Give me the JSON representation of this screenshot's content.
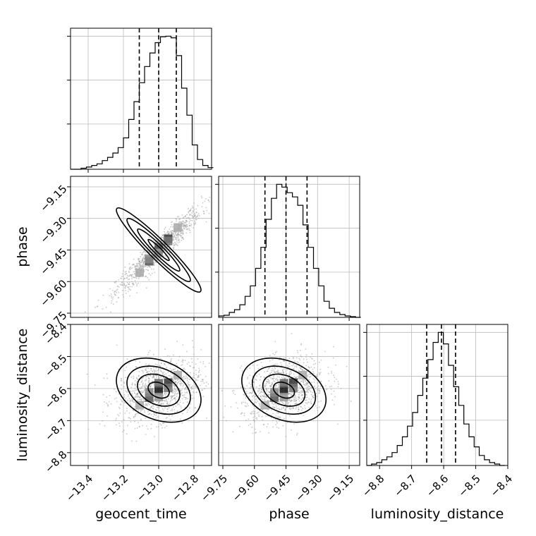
{
  "chart_data": {
    "type": "corner",
    "parameters": [
      {
        "name": "geocent_time",
        "label": "geocent_time",
        "range": [
          -13.5,
          -12.7
        ],
        "ticks": [
          -13.4,
          -13.2,
          -13.0,
          -12.8
        ],
        "tick_labels": [
          "−13.4",
          "−13.2",
          "−13.0",
          "−12.8"
        ],
        "quantiles": [
          -13.11,
          -13.0,
          -12.9
        ]
      },
      {
        "name": "phase",
        "label": "phase",
        "range": [
          -9.77,
          -9.1
        ],
        "ticks": [
          -9.75,
          -9.6,
          -9.45,
          -9.3,
          -9.15
        ],
        "tick_labels": [
          "−9.75",
          "−9.60",
          "−9.45",
          "−9.30",
          "−9.15"
        ],
        "quantiles": [
          -9.55,
          -9.45,
          -9.35
        ]
      },
      {
        "name": "luminosity_distance",
        "label": "luminosity_distance",
        "range": [
          -8.84,
          -8.4
        ],
        "ticks": [
          -8.8,
          -8.7,
          -8.6,
          -8.5,
          -8.4
        ],
        "tick_labels": [
          "−8.8",
          "−8.7",
          "−8.6",
          "−8.5",
          "−8.4"
        ],
        "quantiles": [
          -8.653,
          -8.607,
          -8.563
        ]
      }
    ],
    "histograms": [
      {
        "param": "geocent_time",
        "bin_centers": [
          -13.485,
          -13.455,
          -13.425,
          -13.395,
          -13.365,
          -13.335,
          -13.305,
          -13.275,
          -13.245,
          -13.215,
          -13.185,
          -13.155,
          -13.125,
          -13.095,
          -13.065,
          -13.035,
          -13.005,
          -12.975,
          -12.945,
          -12.915,
          -12.885,
          -12.855,
          -12.825,
          -12.795,
          -12.765,
          -12.735,
          -12.705
        ],
        "counts": [
          0,
          0,
          2,
          4,
          7,
          10,
          16,
          22,
          30,
          40,
          58,
          92,
          125,
          160,
          190,
          215,
          234,
          245,
          246,
          243,
          210,
          150,
          100,
          45,
          18,
          7,
          3
        ]
      },
      {
        "param": "phase",
        "bin_centers": [
          -9.757,
          -9.732,
          -9.707,
          -9.682,
          -9.657,
          -9.632,
          -9.607,
          -9.582,
          -9.557,
          -9.532,
          -9.507,
          -9.482,
          -9.457,
          -9.432,
          -9.407,
          -9.382,
          -9.357,
          -9.332,
          -9.307,
          -9.282,
          -9.257,
          -9.232,
          -9.207,
          -9.182,
          -9.157,
          -9.132,
          -9.107
        ],
        "counts": [
          2,
          3,
          7,
          11,
          18,
          30,
          45,
          70,
          100,
          140,
          170,
          190,
          186,
          178,
          172,
          160,
          132,
          100,
          70,
          45,
          23,
          13,
          7,
          4,
          2,
          1,
          0
        ]
      },
      {
        "param": "luminosity_distance",
        "bin_centers": [
          -8.833,
          -8.817,
          -8.801,
          -8.785,
          -8.769,
          -8.753,
          -8.737,
          -8.721,
          -8.705,
          -8.689,
          -8.673,
          -8.657,
          -8.641,
          -8.625,
          -8.609,
          -8.593,
          -8.577,
          -8.561,
          -8.545,
          -8.529,
          -8.513,
          -8.497,
          -8.481,
          -8.465,
          -8.449,
          -8.433,
          -8.417
        ],
        "counts": [
          0,
          2,
          4,
          8,
          12,
          18,
          28,
          40,
          55,
          74,
          98,
          122,
          148,
          172,
          186,
          170,
          140,
          110,
          84,
          58,
          40,
          26,
          14,
          8,
          4,
          2,
          0
        ]
      }
    ],
    "pairs": [
      {
        "x": "geocent_time",
        "y": "phase",
        "mean": [
          -13.0,
          -9.45
        ],
        "sd": [
          0.12,
          0.1
        ],
        "correlation": 0.95
      },
      {
        "x": "geocent_time",
        "y": "luminosity_distance",
        "mean": [
          -13.0,
          -8.605
        ],
        "sd": [
          0.12,
          0.05
        ],
        "correlation": 0.3
      },
      {
        "x": "phase",
        "y": "luminosity_distance",
        "mean": [
          -9.46,
          -8.605
        ],
        "sd": [
          0.1,
          0.05
        ],
        "correlation": 0.3
      }
    ],
    "contour_levels_sigma": [
      0.5,
      1.0,
      1.5,
      2.0
    ],
    "grid": true,
    "quantile_line_style": "dashed"
  }
}
